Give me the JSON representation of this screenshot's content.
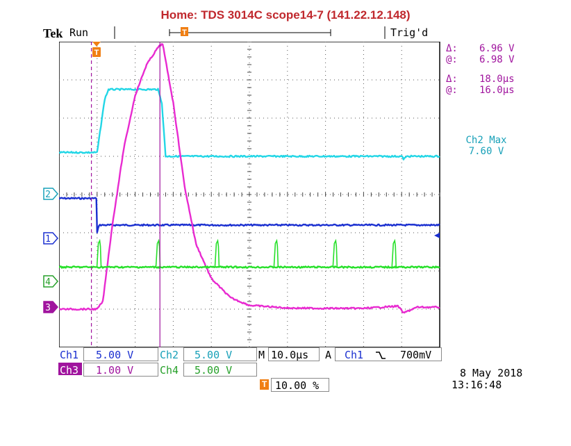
{
  "header": {
    "title": "Home:  TDS 3014C  scope14-7  (141.22.12.148)",
    "brand": "Tek",
    "run_state": "Run",
    "trigger_state": "Trig'd",
    "trigger_marker": "T"
  },
  "cursor_readout": {
    "v_delta_label": "Δ:",
    "v_delta": "6.96 V",
    "v_at_label": "@:",
    "v_at": "6.98 V",
    "t_delta_label": "Δ:",
    "t_delta": "18.0μs",
    "t_at_label": "@:",
    "t_at": "16.0μs"
  },
  "measurement": {
    "label": "Ch2 Max",
    "value": "7.60 V"
  },
  "channel_markers": {
    "ch1": "1",
    "ch2": "2",
    "ch3": "3",
    "ch4": "4"
  },
  "settings": {
    "ch1_label": "Ch1",
    "ch1_scale": "5.00 V",
    "ch2_label": "Ch2",
    "ch2_scale": "5.00 V",
    "ch3_label": "Ch3",
    "ch3_scale": "1.00 V",
    "ch4_label": "Ch4",
    "ch4_scale": "5.00 V",
    "horiz_label": "M",
    "horiz_scale": "10.0μs",
    "trig_mode": "A",
    "trig_source": "Ch1",
    "trig_slope": "⌊",
    "trig_level": "700mV",
    "trig_pos_marker": "T",
    "trig_pos": "10.00 %"
  },
  "timestamp": {
    "date": "8 May 2018",
    "time": "13:16:48"
  },
  "colors": {
    "ch1": "#1a2fd0",
    "ch2": "#22d6e6",
    "ch3": "#e82ad0",
    "ch4": "#27e02a",
    "cursor": "#a0149e",
    "title": "#c0282d"
  },
  "chart_data": {
    "type": "line",
    "x_unit": "divisions (10.0μs/div)",
    "xlim": [
      0,
      10
    ],
    "ylim": [
      -4,
      4
    ],
    "grid": true,
    "series": [
      {
        "name": "Ch1",
        "x": [
          0,
          0.98,
          1.0,
          1.05,
          10
        ],
        "y": [
          -0.1,
          -0.1,
          -1.0,
          -0.8,
          -0.8
        ]
      },
      {
        "name": "Ch2",
        "x": [
          0,
          1.0,
          1.1,
          1.2,
          1.3,
          2.6,
          2.7,
          2.8,
          9.0,
          9.05,
          9.15,
          10
        ],
        "y": [
          1.1,
          1.1,
          1.8,
          2.5,
          2.75,
          2.75,
          2.4,
          1.0,
          1.0,
          0.93,
          1.0,
          1.0
        ]
      },
      {
        "name": "Ch3",
        "x": [
          0,
          1.0,
          1.15,
          1.4,
          1.7,
          2.0,
          2.3,
          2.6,
          2.72,
          3.0,
          3.3,
          3.6,
          4.0,
          4.5,
          5.0,
          6.0,
          7.0,
          8.0,
          8.9,
          9.05,
          9.4,
          10
        ],
        "y": [
          -3.0,
          -3.0,
          -2.8,
          -0.8,
          1.2,
          2.6,
          3.4,
          3.85,
          3.95,
          2.4,
          0.2,
          -1.3,
          -2.2,
          -2.7,
          -2.9,
          -2.97,
          -2.98,
          -2.98,
          -2.92,
          -3.1,
          -2.95,
          -2.95
        ]
      },
      {
        "name": "Ch4",
        "x": [
          0,
          10
        ],
        "y": [
          -1.9,
          -1.9
        ],
        "spikes_x": [
          1.05,
          2.6,
          4.15,
          5.7,
          7.25,
          8.8
        ]
      }
    ],
    "cursors": {
      "v1": 3.95,
      "v2": -2.98,
      "t1": 0.85,
      "t2": 2.65
    }
  }
}
